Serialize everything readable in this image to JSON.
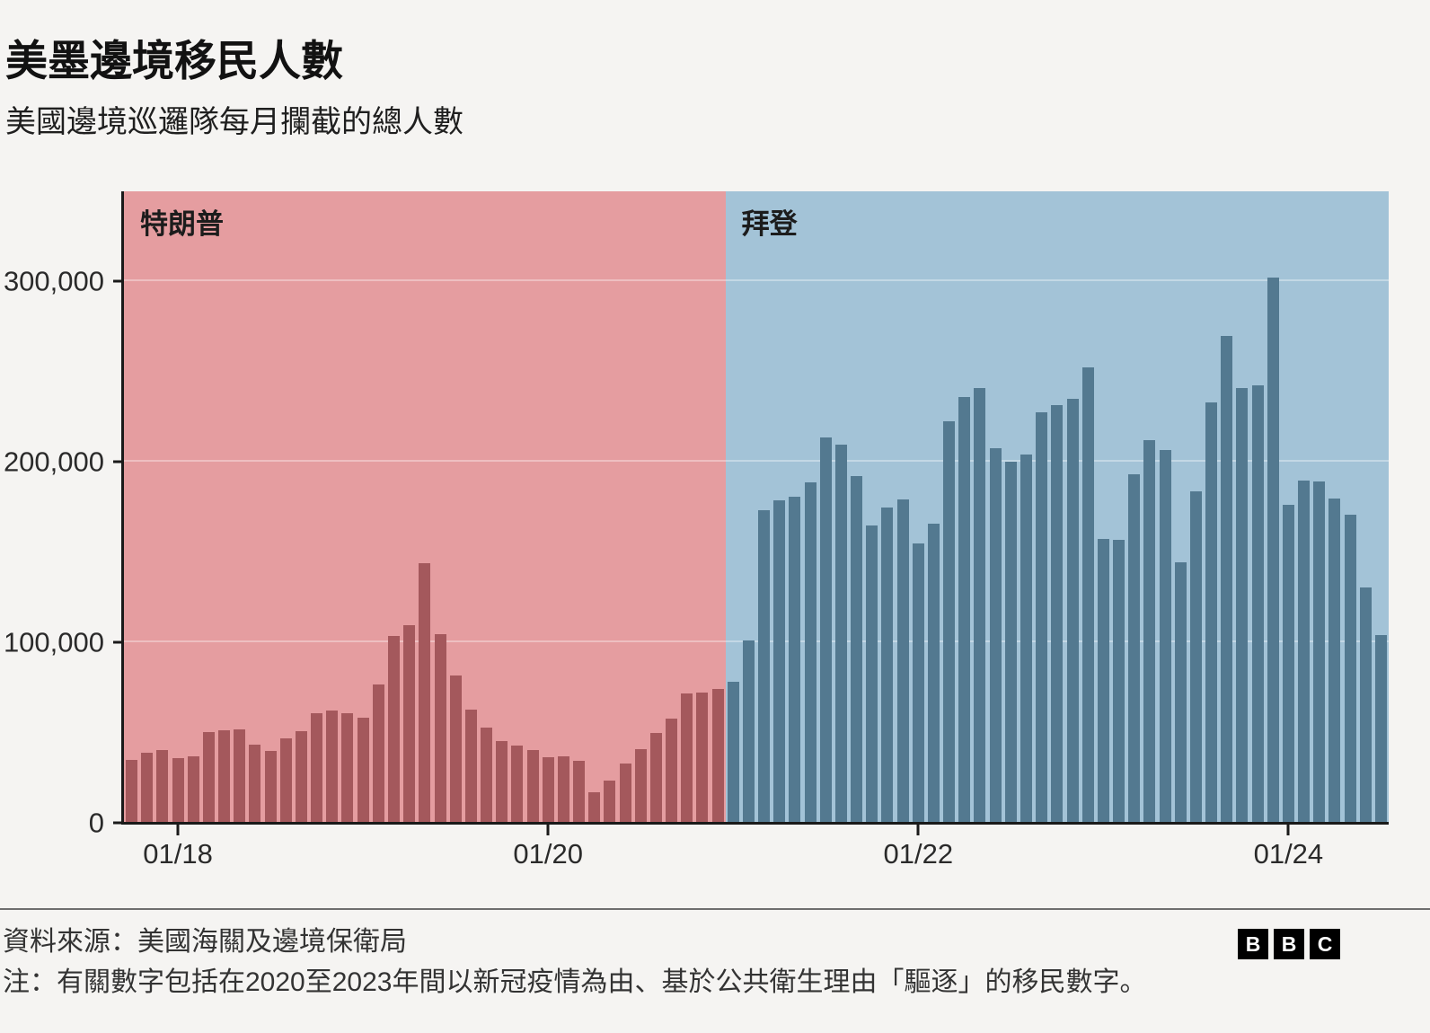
{
  "header": {
    "title": "美墨邊境移民人數",
    "subtitle": "美國邊境巡邏隊每月攔截的總人數"
  },
  "chart_data": {
    "type": "bar",
    "title": "美墨邊境移民人數",
    "subtitle": "美國邊境巡邏隊每月攔截的總人數",
    "ylim": [
      0,
      350000
    ],
    "yticks": [
      0,
      100000,
      200000,
      300000
    ],
    "ytick_labels": [
      "0",
      "100,000",
      "200,000",
      "300,000"
    ],
    "xticks": [
      {
        "label": "01/18",
        "month": "2018-01"
      },
      {
        "label": "01/20",
        "month": "2020-01"
      },
      {
        "label": "01/22",
        "month": "2022-01"
      },
      {
        "label": "01/24",
        "month": "2024-01"
      }
    ],
    "grid": true,
    "legend_position": "region-labels-inside-plot",
    "series": [
      {
        "name": "特朗普",
        "bar_color": "#A4585C",
        "region_color": "#E59DA0",
        "months": [
          "2017-10",
          "2017-11",
          "2017-12",
          "2018-01",
          "2018-02",
          "2018-03",
          "2018-04",
          "2018-05",
          "2018-06",
          "2018-07",
          "2018-08",
          "2018-09",
          "2018-10",
          "2018-11",
          "2018-12",
          "2019-01",
          "2019-02",
          "2019-03",
          "2019-04",
          "2019-05",
          "2019-06",
          "2019-07",
          "2019-08",
          "2019-09",
          "2019-10",
          "2019-11",
          "2019-12",
          "2020-01",
          "2020-02",
          "2020-03",
          "2020-04",
          "2020-05",
          "2020-06",
          "2020-07",
          "2020-08",
          "2020-09",
          "2020-10",
          "2020-11",
          "2020-12"
        ],
        "values": [
          34871,
          39006,
          40519,
          35905,
          36745,
          50347,
          51168,
          51862,
          43180,
          40011,
          46719,
          50568,
          60781,
          62469,
          60794,
          58317,
          76545,
          103731,
          109415,
          144116,
          104311,
          81777,
          62707,
          52546,
          45139,
          42643,
          40565,
          36585,
          36687,
          34460,
          17106,
          23237,
          33049,
          40929,
          50014,
          57674,
          71929,
          72113,
          73994
        ]
      },
      {
        "name": "拜登",
        "bar_color": "#537990",
        "region_color": "#A3C3D7",
        "months": [
          "2021-01",
          "2021-02",
          "2021-03",
          "2021-04",
          "2021-05",
          "2021-06",
          "2021-07",
          "2021-08",
          "2021-09",
          "2021-10",
          "2021-11",
          "2021-12",
          "2022-01",
          "2022-02",
          "2022-03",
          "2022-04",
          "2022-05",
          "2022-06",
          "2022-07",
          "2022-08",
          "2022-09",
          "2022-10",
          "2022-11",
          "2022-12",
          "2023-01",
          "2023-02",
          "2023-03",
          "2023-04",
          "2023-05",
          "2023-06",
          "2023-07",
          "2023-08",
          "2023-09",
          "2023-10",
          "2023-11",
          "2023-12",
          "2024-01",
          "2024-02",
          "2024-03",
          "2024-04",
          "2024-05",
          "2024-06",
          "2024-07"
        ],
        "values": [
          78414,
          101099,
          173277,
          178854,
          180597,
          188829,
          213534,
          209840,
          192001,
          164837,
          174845,
          179253,
          154874,
          165902,
          222574,
          235785,
          241136,
          207834,
          200162,
          204087,
          227547,
          231529,
          234896,
          252315,
          157358,
          156630,
          193254,
          211992,
          206701,
          144566,
          183503,
          232963,
          269735,
          240988,
          242418,
          302034,
          176195,
          189913,
          189372,
          179735,
          170712,
          130419,
          104101
        ]
      }
    ]
  },
  "colors": {
    "page_background": "#f5f4f2",
    "axis": "#1a1a1a",
    "gridline": "rgba(255,255,255,0.35)",
    "divider": "#6e6e6e",
    "trump_bar": "#A4585C",
    "trump_region": "#E59DA0",
    "biden_bar": "#537990",
    "biden_region": "#A3C3D7"
  },
  "footer": {
    "source": "資料來源：美國海關及邊境保衛局",
    "note": "注：有關數字包括在2020至2023年間以新冠疫情為由、基於公共衛生理由「驅逐」的移民數字。",
    "logo_letters": [
      "B",
      "B",
      "C"
    ]
  }
}
